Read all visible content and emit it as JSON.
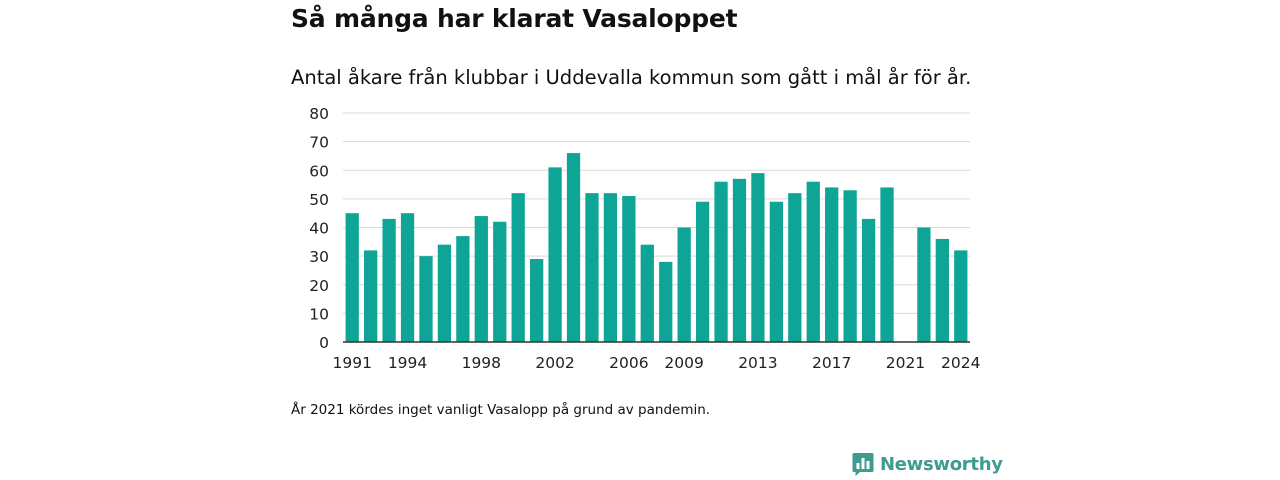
{
  "title": "Så många har klarat Vasaloppet",
  "subtitle": "Antal åkare från klubbar i Uddevalla kommun som gått i mål år för år.",
  "note": "År 2021 kördes inget vanligt Vasalopp på grund av pandemin.",
  "brand": {
    "name": "Newsworthy",
    "icon": "newsworthy-logo-icon",
    "color": "#3d9c8f"
  },
  "chart_data": {
    "type": "bar",
    "bar_color": "#0ea597",
    "categories": [
      1991,
      1992,
      1993,
      1994,
      1995,
      1996,
      1997,
      1998,
      1999,
      2000,
      2001,
      2002,
      2003,
      2004,
      2005,
      2006,
      2007,
      2008,
      2009,
      2010,
      2011,
      2012,
      2013,
      2014,
      2015,
      2016,
      2017,
      2018,
      2019,
      2020,
      2021,
      2022,
      2023,
      2024
    ],
    "values": [
      45,
      32,
      43,
      45,
      30,
      34,
      37,
      44,
      42,
      52,
      29,
      61,
      66,
      52,
      52,
      51,
      34,
      28,
      40,
      49,
      56,
      57,
      59,
      49,
      52,
      56,
      54,
      53,
      43,
      54,
      null,
      40,
      36,
      32
    ],
    "ylim": [
      0,
      80
    ],
    "yticks": [
      0,
      10,
      20,
      30,
      40,
      50,
      60,
      70,
      80
    ],
    "xtick_labels": [
      "1991",
      "1994",
      "1998",
      "2002",
      "2006",
      "2009",
      "2013",
      "2017",
      "2021",
      "2024"
    ],
    "grid": true,
    "legend": "none"
  }
}
